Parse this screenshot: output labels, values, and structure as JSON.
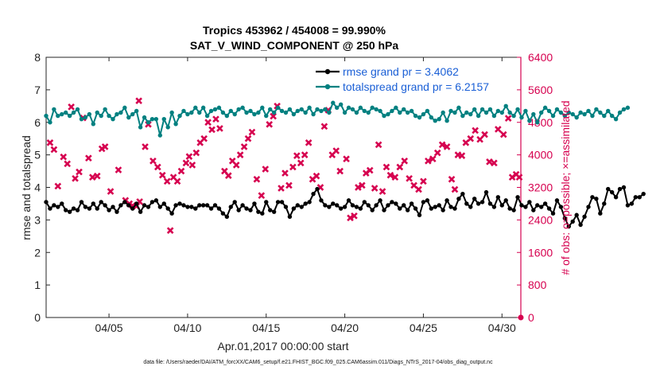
{
  "chart_data": {
    "type": "line",
    "title": "Tropics 453962 / 454008 = 99.990%",
    "subtitle": "SAT_V_WIND_COMPONENT @ 250 hPa",
    "xlabel": "Apr.01,2017 00:00:00 start",
    "ylabel_left": "rmse and totalspread",
    "ylabel_right": "# of obs: o=possible; ×=assimilated",
    "footnote": "data file: /Users/raeder/DAI/ATM_forcXX/CAM6_setup/f.e21.FHIST_BGC.f09_025.CAM6assim.011/Diags_NTrS_2017-04/obs_diag_output.nc",
    "xlim": [
      1,
      31.2
    ],
    "ylim_left": [
      0,
      8
    ],
    "ylim_right": [
      0,
      6400
    ],
    "x_ticks": [
      5,
      10,
      15,
      20,
      25,
      30
    ],
    "x_tick_labels": [
      "04/05",
      "04/10",
      "04/15",
      "04/20",
      "04/25",
      "04/30"
    ],
    "y_ticks_left": [
      0,
      1,
      2,
      3,
      4,
      5,
      6,
      7,
      8
    ],
    "y_tick_labels_left": [
      "0",
      "1",
      "2",
      "3",
      "4",
      "5",
      "6",
      "7",
      "8"
    ],
    "y_ticks_right": [
      0,
      800,
      1600,
      2400,
      3200,
      4000,
      4800,
      5600,
      6400
    ],
    "y_tick_labels_right": [
      "0",
      "800",
      "1600",
      "2400",
      "3200",
      "4000",
      "4800",
      "5600",
      "6400"
    ],
    "x_start": 1.0,
    "x_step": 0.25,
    "series": [
      {
        "name": "rmse",
        "legend": "rmse grand pr = 3.4062",
        "color": "#000000",
        "axis": "left",
        "values": [
          3.55,
          3.35,
          3.45,
          3.4,
          3.5,
          3.3,
          3.25,
          3.35,
          3.3,
          3.55,
          3.4,
          3.35,
          3.5,
          3.35,
          3.55,
          3.45,
          3.3,
          3.4,
          3.25,
          3.45,
          3.55,
          3.45,
          3.35,
          3.5,
          3.25,
          3.45,
          3.4,
          3.55,
          3.6,
          3.4,
          3.5,
          3.35,
          3.2,
          3.45,
          3.5,
          3.45,
          3.4,
          3.4,
          3.35,
          3.45,
          3.45,
          3.45,
          3.35,
          3.45,
          3.35,
          3.2,
          3.1,
          3.4,
          3.55,
          3.3,
          3.45,
          3.35,
          3.3,
          3.5,
          3.25,
          3.2,
          3.55,
          3.3,
          3.25,
          3.55,
          3.55,
          3.4,
          3.1,
          3.35,
          3.45,
          3.4,
          3.5,
          3.55,
          3.8,
          3.95,
          3.6,
          3.45,
          3.4,
          3.5,
          3.45,
          3.35,
          3.4,
          3.6,
          3.45,
          3.4,
          3.35,
          3.55,
          3.45,
          3.3,
          3.45,
          3.6,
          3.3,
          3.45,
          3.55,
          3.5,
          3.35,
          3.45,
          3.3,
          3.5,
          3.35,
          3.15,
          3.55,
          3.6,
          3.35,
          3.4,
          3.45,
          3.3,
          3.6,
          3.4,
          3.35,
          3.65,
          3.8,
          3.5,
          3.4,
          3.65,
          3.5,
          3.55,
          3.85,
          3.5,
          3.4,
          3.7,
          3.45,
          3.6,
          3.35,
          3.3,
          3.7,
          3.45,
          3.4,
          3.55,
          3.3,
          3.45,
          3.4,
          3.5,
          3.35,
          3.2,
          3.6,
          3.4,
          3.05,
          2.8,
          2.95,
          3.15,
          2.85,
          3.1,
          3.4,
          3.7,
          3.65,
          3.2,
          3.5,
          3.95,
          3.85,
          3.7,
          3.95,
          4.0,
          3.45,
          3.5,
          3.7,
          3.7,
          3.8
        ]
      },
      {
        "name": "totalspread",
        "legend": "totalspread grand pr = 6.2157",
        "color": "#008080",
        "axis": "left",
        "values": [
          6.2,
          6.0,
          6.4,
          6.2,
          6.25,
          6.3,
          6.2,
          6.3,
          6.4,
          6.1,
          6.15,
          6.25,
          5.95,
          6.3,
          6.2,
          6.4,
          6.2,
          6.1,
          6.25,
          6.3,
          6.45,
          6.15,
          6.25,
          6.35,
          5.85,
          6.15,
          6.0,
          6.1,
          6.1,
          5.6,
          6.1,
          5.85,
          6.3,
          5.95,
          6.2,
          6.35,
          6.25,
          6.3,
          6.45,
          6.3,
          6.45,
          6.2,
          6.35,
          6.4,
          6.45,
          6.3,
          6.2,
          6.35,
          6.25,
          6.4,
          6.45,
          6.3,
          6.35,
          6.25,
          6.3,
          6.45,
          6.2,
          6.4,
          6.3,
          6.45,
          6.35,
          6.3,
          6.4,
          6.25,
          6.35,
          6.4,
          6.3,
          6.45,
          6.25,
          6.4,
          6.35,
          6.4,
          6.3,
          6.6,
          6.45,
          6.55,
          6.3,
          6.45,
          6.4,
          6.3,
          6.45,
          6.35,
          6.3,
          6.45,
          6.4,
          6.35,
          6.2,
          6.25,
          6.35,
          6.45,
          6.3,
          6.4,
          6.3,
          6.35,
          6.2,
          6.15,
          6.25,
          6.35,
          6.15,
          6.05,
          6.1,
          6.3,
          6.05,
          6.35,
          6.3,
          6.45,
          6.2,
          6.3,
          6.25,
          6.4,
          6.2,
          6.4,
          6.3,
          6.4,
          6.2,
          6.35,
          6.3,
          6.5,
          6.3,
          6.2,
          6.4,
          6.15,
          6.35,
          6.05,
          6.25,
          6.0,
          6.3,
          6.45,
          6.35,
          6.2,
          6.4,
          6.3,
          6.2,
          6.3,
          6.25,
          6.15,
          6.3,
          6.25,
          6.35,
          6.2,
          6.4,
          6.3,
          6.2,
          6.35,
          6.2,
          6.1,
          6.3,
          6.4,
          6.45
        ]
      },
      {
        "name": "# obs assimilated",
        "color": "#d6004f",
        "axis": "right",
        "marker": "x",
        "points": [
          [
            1.25,
            4300
          ],
          [
            1.5,
            4130
          ],
          [
            1.75,
            3230
          ],
          [
            2.1,
            3950
          ],
          [
            2.35,
            3780
          ],
          [
            2.6,
            5180
          ],
          [
            2.85,
            3420
          ],
          [
            3.1,
            3580
          ],
          [
            3.35,
            4910
          ],
          [
            3.7,
            3920
          ],
          [
            3.95,
            3450
          ],
          [
            4.25,
            3480
          ],
          [
            4.55,
            4150
          ],
          [
            4.75,
            4200
          ],
          [
            5.1,
            3100
          ],
          [
            5.6,
            3630
          ],
          [
            6.05,
            2880
          ],
          [
            6.3,
            2800
          ],
          [
            6.5,
            2750
          ],
          [
            6.75,
            2740
          ],
          [
            6.9,
            5330
          ],
          [
            6.95,
            2850
          ],
          [
            7.3,
            4200
          ],
          [
            7.5,
            4750
          ],
          [
            7.8,
            3850
          ],
          [
            8.1,
            3700
          ],
          [
            8.4,
            3500
          ],
          [
            8.7,
            3350
          ],
          [
            8.9,
            2140
          ],
          [
            9.1,
            3450
          ],
          [
            9.35,
            3350
          ],
          [
            9.6,
            3600
          ],
          [
            9.9,
            3800
          ],
          [
            10.1,
            3960
          ],
          [
            10.3,
            3750
          ],
          [
            10.55,
            4050
          ],
          [
            10.8,
            4300
          ],
          [
            11.05,
            4400
          ],
          [
            11.3,
            4800
          ],
          [
            11.55,
            4620
          ],
          [
            11.8,
            4880
          ],
          [
            12.05,
            4650
          ],
          [
            12.35,
            3600
          ],
          [
            12.6,
            3490
          ],
          [
            12.85,
            3850
          ],
          [
            13.1,
            3750
          ],
          [
            13.35,
            4000
          ],
          [
            13.6,
            4200
          ],
          [
            13.85,
            4400
          ],
          [
            14.1,
            4560
          ],
          [
            14.4,
            3400
          ],
          [
            14.7,
            3000
          ],
          [
            14.95,
            3650
          ],
          [
            15.2,
            4750
          ],
          [
            15.45,
            4950
          ],
          [
            15.7,
            5200
          ],
          [
            15.95,
            3180
          ],
          [
            16.2,
            3550
          ],
          [
            16.45,
            3250
          ],
          [
            16.7,
            3700
          ],
          [
            16.95,
            3980
          ],
          [
            17.2,
            3800
          ],
          [
            17.45,
            4000
          ],
          [
            17.7,
            4300
          ],
          [
            17.95,
            3400
          ],
          [
            18.2,
            3480
          ],
          [
            18.45,
            3200
          ],
          [
            18.7,
            4700
          ],
          [
            18.95,
            5100
          ],
          [
            19.2,
            4000
          ],
          [
            19.45,
            4100
          ],
          [
            19.7,
            3600
          ],
          [
            20.1,
            3900
          ],
          [
            20.35,
            2450
          ],
          [
            20.6,
            2500
          ],
          [
            20.85,
            3200
          ],
          [
            21.1,
            3250
          ],
          [
            21.35,
            3550
          ],
          [
            21.6,
            3620
          ],
          [
            21.9,
            3180
          ],
          [
            22.15,
            4250
          ],
          [
            22.4,
            3100
          ],
          [
            22.65,
            3700
          ],
          [
            22.9,
            3500
          ],
          [
            23.2,
            3450
          ],
          [
            23.5,
            3700
          ],
          [
            23.8,
            3850
          ],
          [
            24.1,
            3420
          ],
          [
            24.4,
            3250
          ],
          [
            24.7,
            3150
          ],
          [
            25.0,
            3350
          ],
          [
            25.3,
            3850
          ],
          [
            25.6,
            3900
          ],
          [
            25.9,
            4050
          ],
          [
            26.2,
            4250
          ],
          [
            26.5,
            4200
          ],
          [
            26.8,
            3400
          ],
          [
            27.0,
            3150
          ],
          [
            27.2,
            4000
          ],
          [
            27.45,
            3980
          ],
          [
            27.7,
            4300
          ],
          [
            28.0,
            4400
          ],
          [
            28.3,
            4600
          ],
          [
            28.6,
            4380
          ],
          [
            28.9,
            4500
          ],
          [
            29.2,
            3830
          ],
          [
            29.5,
            3800
          ],
          [
            29.75,
            4630
          ],
          [
            30.1,
            4500
          ],
          [
            30.4,
            4900
          ],
          [
            30.65,
            3450
          ],
          [
            30.9,
            3520
          ],
          [
            31.1,
            3450
          ]
        ]
      }
    ],
    "right_axis_end_marker": 0
  }
}
